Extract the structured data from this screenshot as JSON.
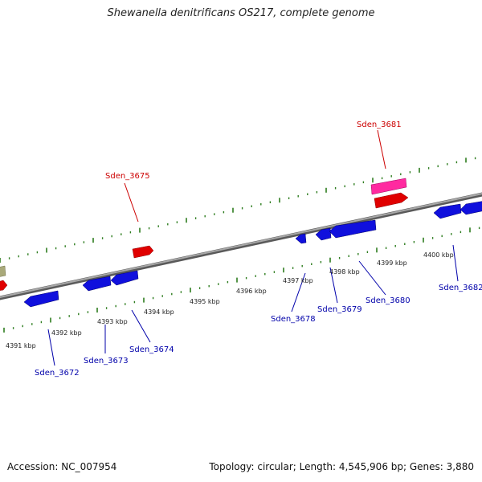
{
  "title": "Shewanella denitrificans OS217, complete genome",
  "footer": {
    "accession": "Accession: NC_007954",
    "summary": "Topology: circular; Length: 4,545,906 bp; Genes: 3,880"
  },
  "colors": {
    "backbone": "#8a8a8a",
    "tick": "#2e7d1f",
    "forward_gene": "#e00000",
    "forward_gene_pink": "#ff2aa0",
    "reverse_gene": "#1010dd",
    "olive_gene": "#a9a97a",
    "label_forward": "#cc0000",
    "label_reverse": "#0000aa"
  },
  "kbp_labels": [
    "4391 kbp",
    "4392 kbp",
    "4393 kbp",
    "4394 kbp",
    "4395 kbp",
    "4396 kbp",
    "4397 kbp",
    "4398 kbp",
    "4399 kbp",
    "4400 kbp"
  ],
  "gene_labels": {
    "forward": [
      "Sden_3675",
      "Sden_3681"
    ],
    "reverse": [
      "Sden_3672",
      "Sden_3673",
      "Sden_3674",
      "Sden_3678",
      "Sden_3679",
      "Sden_3680",
      "Sden_3682"
    ]
  }
}
